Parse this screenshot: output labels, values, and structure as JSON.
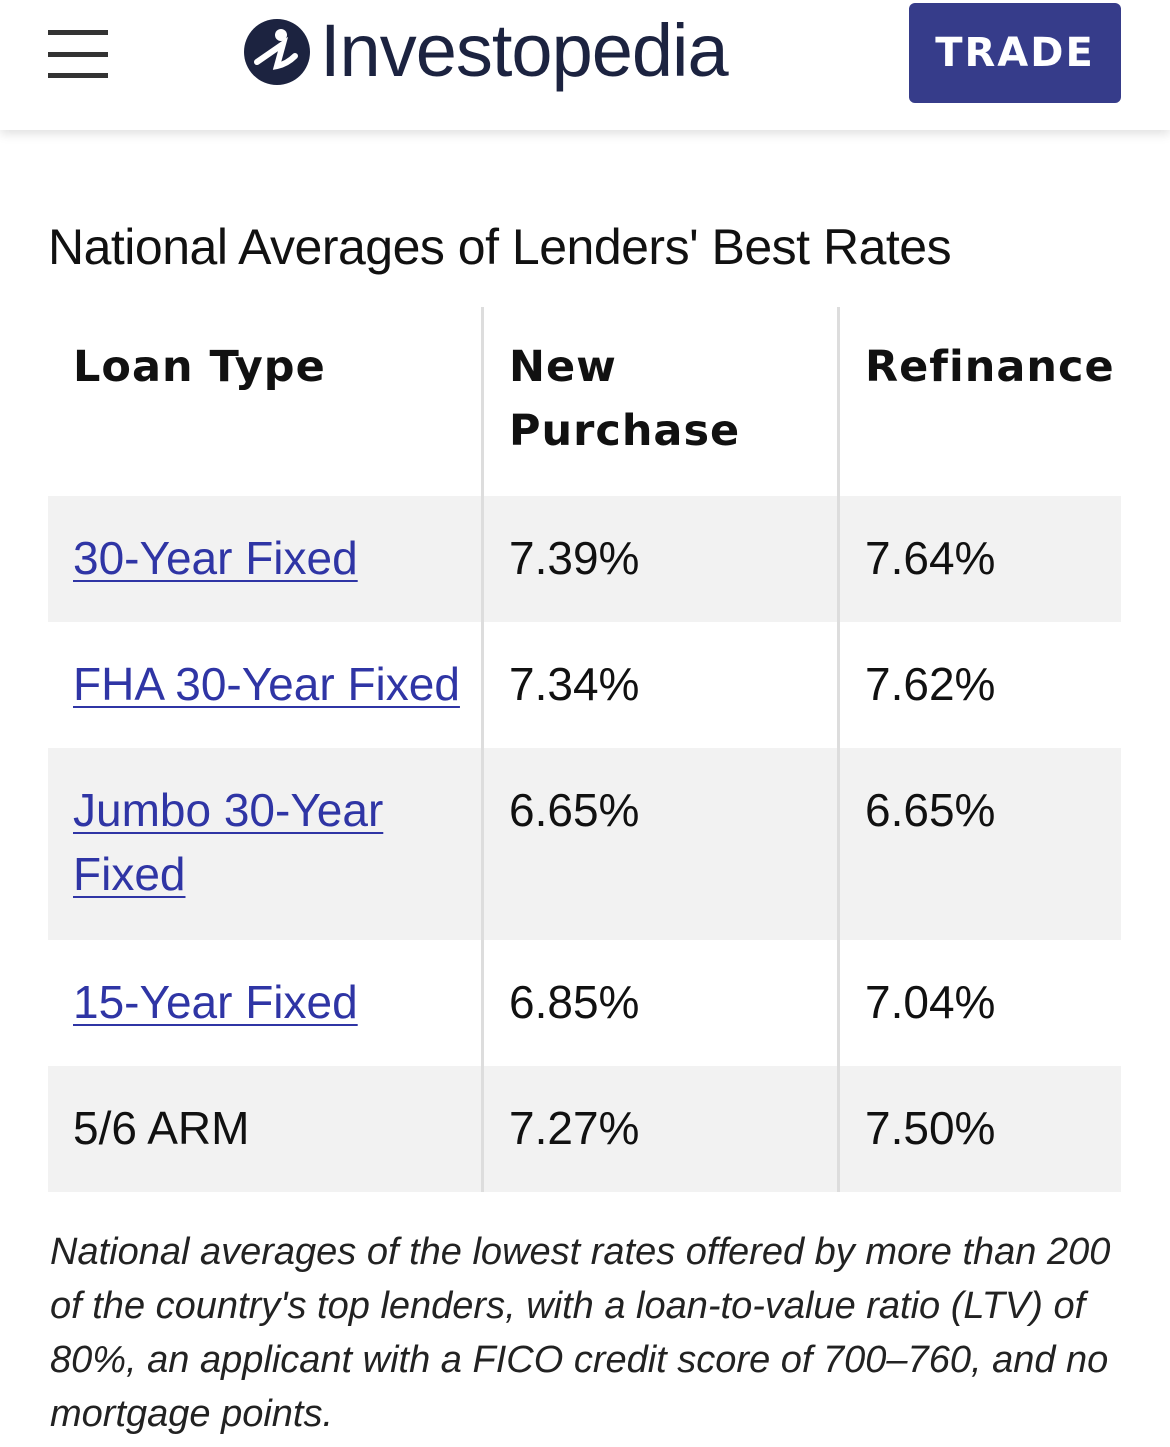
{
  "header": {
    "brand": "Investopedia",
    "button": "TRADE"
  },
  "title": "National Averages of Lenders' Best Rates",
  "table": {
    "columns": [
      "Loan Type",
      "New Purchase",
      "Refinance"
    ],
    "rows": [
      [
        "30-Year Fixed",
        "7.39%",
        "7.64%"
      ],
      [
        "FHA 30-Year Fixed",
        "7.34%",
        "7.62%"
      ],
      [
        "Jumbo 30-Year Fixed",
        "6.65%",
        "6.65%"
      ],
      [
        "15-Year Fixed",
        "6.85%",
        "7.04%"
      ],
      [
        "5/6 ARM",
        "7.27%",
        "7.50%"
      ]
    ]
  },
  "footnote": "National averages of the lowest rates offered by more than 200 of the country's top lenders, with a loan-to-value ratio (LTV) of 80%, an applicant with a FICO credit score of 700–760, and no mortgage points."
}
